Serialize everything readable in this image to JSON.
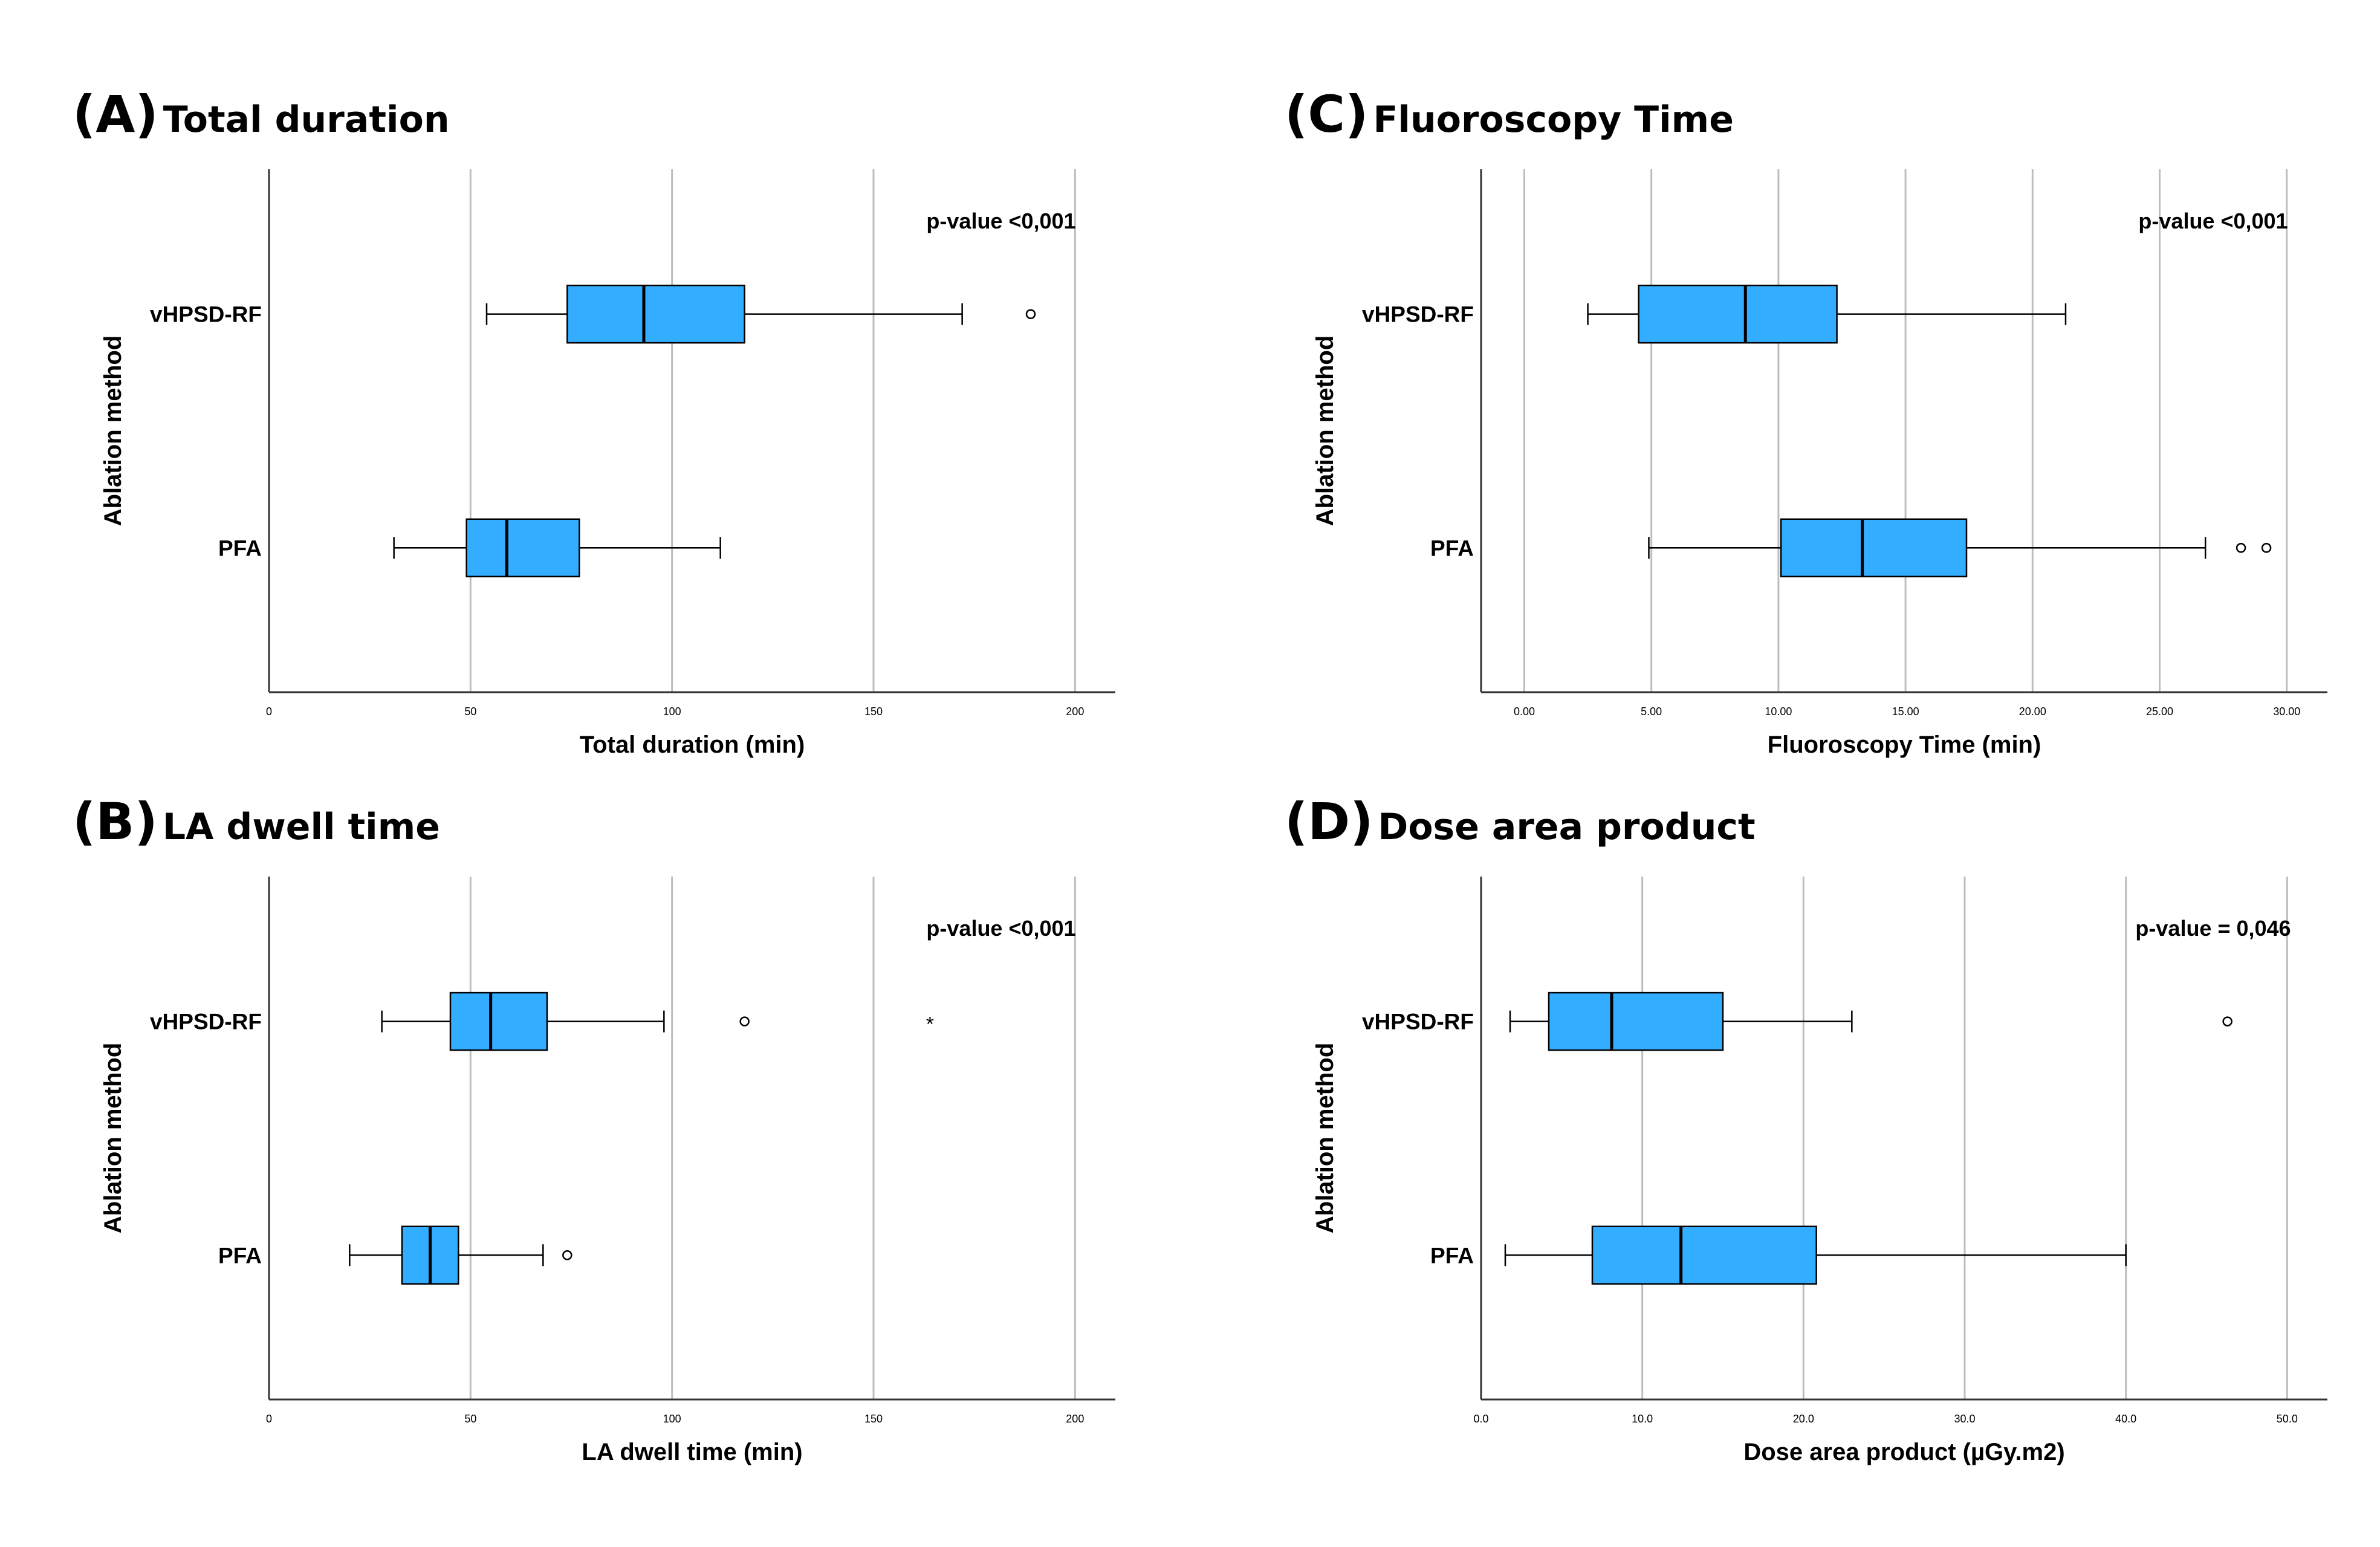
{
  "chart_data": [
    {
      "id": "panel-a",
      "type": "boxplot",
      "orientation": "horizontal",
      "panel_label": "(A)",
      "title": "Total duration",
      "xlabel": "Total duration (min)",
      "ylabel": "Ablation method",
      "xlim": [
        0,
        210
      ],
      "xticks": [
        0,
        50,
        100,
        150,
        200
      ],
      "xtick_labels": [
        "0",
        "50",
        "100",
        "150",
        "200"
      ],
      "grid": "vertical",
      "annotation": "p-value <0,001",
      "box_color": "#33adff",
      "categories": [
        "vHPSD-RF",
        "PFA"
      ],
      "boxes": [
        {
          "category": "vHPSD-RF",
          "whisker_low": 54,
          "q1": 74,
          "median": 93,
          "q3": 118,
          "whisker_high": 172,
          "outliers": [
            189
          ],
          "extremes": []
        },
        {
          "category": "PFA",
          "whisker_low": 31,
          "q1": 49,
          "median": 59,
          "q3": 77,
          "whisker_high": 112,
          "outliers": [],
          "extremes": []
        }
      ]
    },
    {
      "id": "panel-b",
      "type": "boxplot",
      "orientation": "horizontal",
      "panel_label": "(B)",
      "title": "LA dwell time",
      "xlabel": "LA dwell time (min)",
      "ylabel": "Ablation method",
      "xlim": [
        0,
        210
      ],
      "xticks": [
        0,
        50,
        100,
        150,
        200
      ],
      "xtick_labels": [
        "0",
        "50",
        "100",
        "150",
        "200"
      ],
      "grid": "vertical",
      "annotation": "p-value <0,001",
      "box_color": "#33adff",
      "categories": [
        "vHPSD-RF",
        "PFA"
      ],
      "boxes": [
        {
          "category": "vHPSD-RF",
          "whisker_low": 28,
          "q1": 45,
          "median": 55,
          "q3": 69,
          "whisker_high": 98,
          "outliers": [
            118
          ],
          "extremes": [
            164
          ]
        },
        {
          "category": "PFA",
          "whisker_low": 20,
          "q1": 33,
          "median": 40,
          "q3": 47,
          "whisker_high": 68,
          "outliers": [
            74
          ],
          "extremes": []
        }
      ]
    },
    {
      "id": "panel-c",
      "type": "boxplot",
      "orientation": "horizontal",
      "panel_label": "(C)",
      "title": "Fluoroscopy Time",
      "xlabel": "Fluoroscopy Time (min)",
      "ylabel": "Ablation method",
      "xlim": [
        -1.7,
        31.6
      ],
      "xticks": [
        0,
        5,
        10,
        15,
        20,
        25,
        30
      ],
      "xtick_labels": [
        "0.00",
        "5.00",
        "10.00",
        "15.00",
        "20.00",
        "25.00",
        "30.00"
      ],
      "grid": "vertical",
      "annotation": "p-value <0,001",
      "box_color": "#33adff",
      "categories": [
        "vHPSD-RF",
        "PFA"
      ],
      "boxes": [
        {
          "category": "vHPSD-RF",
          "whisker_low": 2.5,
          "q1": 4.5,
          "median": 8.7,
          "q3": 12.3,
          "whisker_high": 21.3,
          "outliers": [],
          "extremes": []
        },
        {
          "category": "PFA",
          "whisker_low": 4.9,
          "q1": 10.1,
          "median": 13.3,
          "q3": 17.4,
          "whisker_high": 26.8,
          "outliers": [
            28.2,
            29.2
          ],
          "extremes": []
        }
      ]
    },
    {
      "id": "panel-d",
      "type": "boxplot",
      "orientation": "horizontal",
      "panel_label": "(D)",
      "title": "Dose area product",
      "xlabel": "Dose area product (µGy.m2)",
      "ylabel": "Ablation method",
      "xlim": [
        0,
        52.5
      ],
      "xticks": [
        0,
        10,
        20,
        30,
        40,
        50
      ],
      "xtick_labels": [
        "0.0",
        "10.0",
        "20.0",
        "30.0",
        "40.0",
        "50.0"
      ],
      "grid": "vertical",
      "annotation": "p-value = 0,046",
      "box_color": "#33adff",
      "categories": [
        "vHPSD-RF",
        "PFA"
      ],
      "boxes": [
        {
          "category": "vHPSD-RF",
          "whisker_low": 1.8,
          "q1": 4.2,
          "median": 8.1,
          "q3": 15.0,
          "whisker_high": 23.0,
          "outliers": [
            46.3
          ],
          "extremes": []
        },
        {
          "category": "PFA",
          "whisker_low": 1.5,
          "q1": 6.9,
          "median": 12.4,
          "q3": 20.8,
          "whisker_high": 40.0,
          "outliers": [],
          "extremes": []
        }
      ]
    }
  ]
}
